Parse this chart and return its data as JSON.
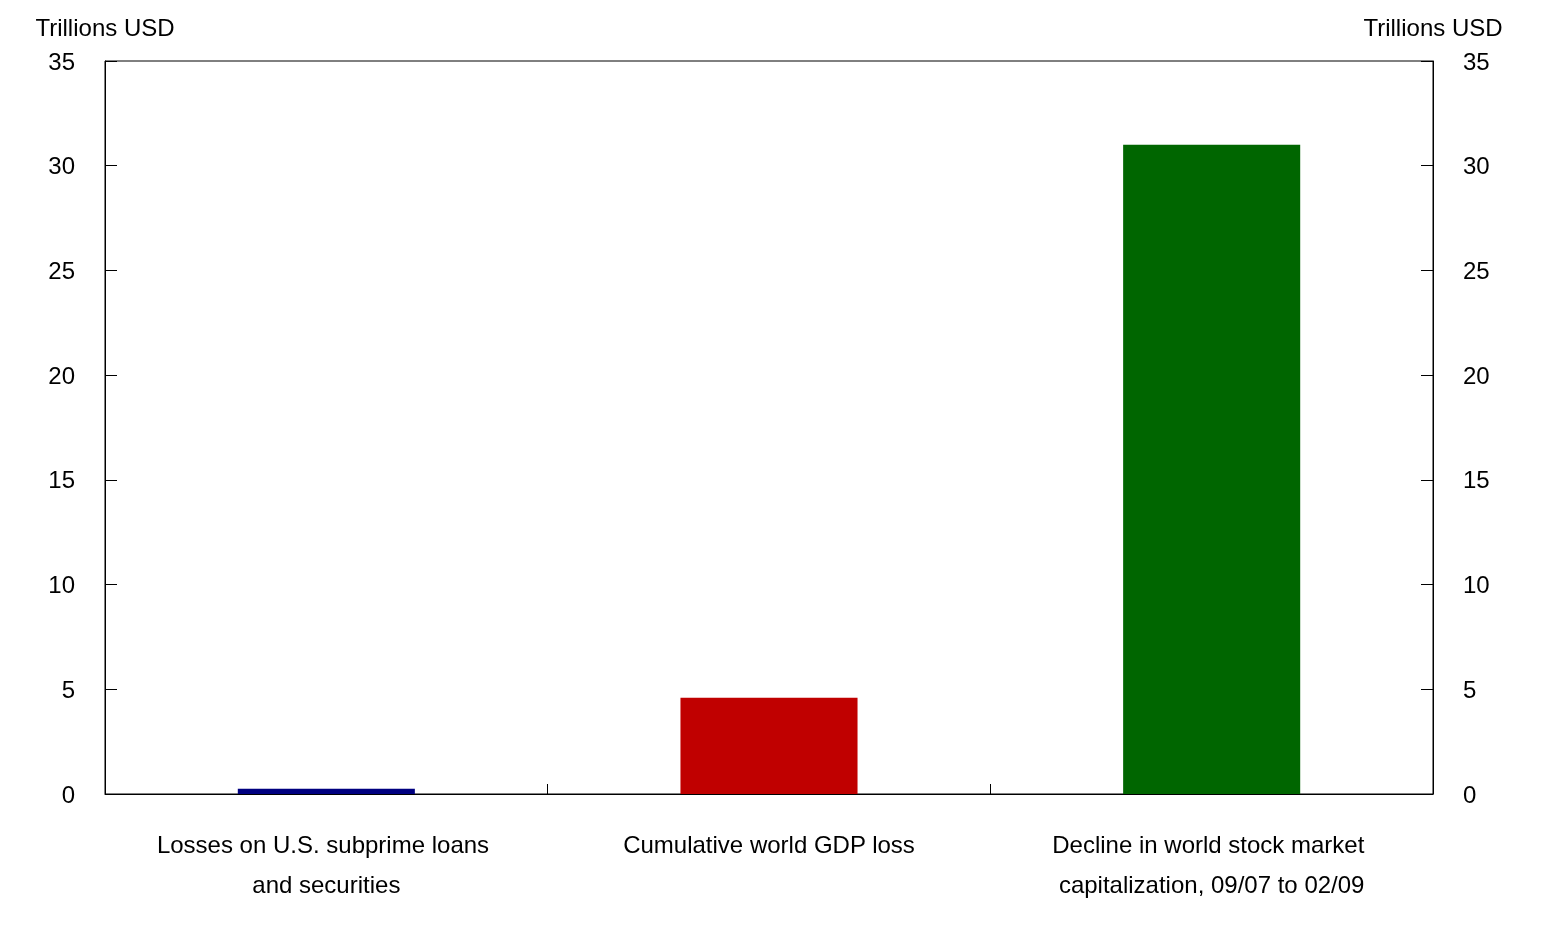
{
  "chart_data": {
    "type": "bar",
    "categories": [
      "Losses on U.S. subprime loans and securities",
      "Cumulative world GDP loss",
      "Decline in world stock market capitalization, 09/07 to 02/09"
    ],
    "values": [
      0.25,
      4.6,
      31
    ],
    "colors": [
      "#000080",
      "#c00000",
      "#006600"
    ],
    "ylabel": "Trillions USD",
    "y2label": "Trillions USD",
    "ylim": [
      0,
      35
    ],
    "yticks": [
      0,
      5,
      10,
      15,
      20,
      25,
      30,
      35
    ],
    "y2lim": [
      0,
      35
    ],
    "y2ticks": [
      0,
      5,
      10,
      15,
      20,
      25,
      30,
      35
    ],
    "grid": false
  }
}
